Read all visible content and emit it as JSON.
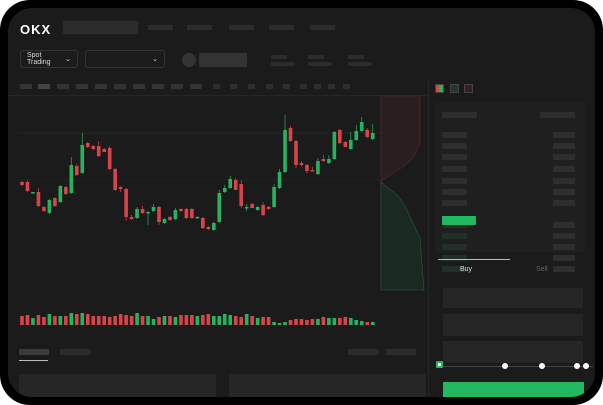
{
  "app": {
    "logo": "OKX"
  },
  "header": {
    "mode_select": "Spot Trading",
    "pair_select": ""
  },
  "trade": {
    "tabs": [
      {
        "label": "Buy",
        "active": true
      },
      {
        "label": "Sell",
        "active": false
      }
    ],
    "slider_value_percent": 0
  },
  "colors": {
    "up": "#25b35f",
    "down": "#d9434a",
    "bg": "#1b1b1b",
    "accent": "#22b860"
  },
  "icons": [
    "chevron-down-icon",
    "orderbook-both-icon",
    "orderbook-bids-icon",
    "orderbook-asks-icon"
  ],
  "chart_data": {
    "type": "candlestick",
    "ohlc": [
      [
        68,
        69,
        64,
        65
      ],
      [
        68,
        70,
        58,
        59
      ],
      [
        57,
        58,
        56,
        58
      ],
      [
        58,
        62,
        43,
        44
      ],
      [
        43,
        44,
        38,
        39
      ],
      [
        37,
        51,
        36,
        50
      ],
      [
        52,
        53,
        43,
        44
      ],
      [
        48,
        65,
        47,
        64
      ],
      [
        63,
        64,
        55,
        56
      ],
      [
        57,
        93,
        56,
        85
      ],
      [
        84,
        86,
        74,
        75
      ],
      [
        77,
        117,
        76,
        105
      ],
      [
        107,
        108,
        102,
        103
      ],
      [
        104,
        105,
        100,
        101
      ],
      [
        104,
        109,
        93,
        94
      ],
      [
        101,
        102,
        98,
        98
      ],
      [
        102,
        104,
        80,
        81
      ],
      [
        81,
        82,
        59,
        60
      ],
      [
        63,
        64,
        58,
        61
      ],
      [
        61,
        62,
        29,
        33
      ],
      [
        33,
        35,
        30,
        31
      ],
      [
        32,
        43,
        31,
        41
      ],
      [
        41,
        44,
        36,
        37
      ],
      [
        37,
        39,
        25,
        38
      ],
      [
        39,
        46,
        38,
        43
      ],
      [
        43,
        44,
        25,
        28
      ],
      [
        27,
        32,
        26,
        31
      ],
      [
        33,
        34,
        29,
        30
      ],
      [
        31,
        42,
        30,
        40
      ],
      [
        41,
        42,
        38,
        39
      ],
      [
        41,
        42,
        31,
        32
      ],
      [
        41,
        42,
        31,
        32
      ],
      [
        33,
        34,
        32,
        33
      ],
      [
        32,
        33,
        21,
        22
      ],
      [
        23,
        24,
        20,
        21
      ],
      [
        20,
        28,
        19,
        27
      ],
      [
        28,
        60,
        27,
        57
      ],
      [
        58,
        65,
        57,
        62
      ],
      [
        62,
        74,
        61,
        71
      ],
      [
        70,
        72,
        60,
        60
      ],
      [
        66,
        70,
        42,
        44
      ],
      [
        43,
        46,
        39,
        43
      ],
      [
        46,
        47,
        42,
        42
      ],
      [
        40,
        44,
        39,
        43
      ],
      [
        45,
        48,
        34,
        35
      ],
      [
        43,
        44,
        40,
        41
      ],
      [
        43,
        66,
        42,
        63
      ],
      [
        62,
        81,
        61,
        78
      ],
      [
        78,
        135,
        77,
        120
      ],
      [
        122,
        124,
        108,
        109
      ],
      [
        109,
        110,
        82,
        85
      ],
      [
        87,
        89,
        84,
        85
      ],
      [
        85,
        86,
        77,
        79
      ],
      [
        80,
        83,
        79,
        79
      ],
      [
        76,
        92,
        75,
        89
      ],
      [
        91,
        95,
        88,
        89
      ],
      [
        87,
        95,
        86,
        91
      ],
      [
        91,
        119,
        90,
        118
      ],
      [
        120,
        121,
        106,
        107
      ],
      [
        108,
        109,
        103,
        103
      ],
      [
        101,
        118,
        100,
        110
      ],
      [
        110,
        125,
        109,
        119
      ],
      [
        119,
        133,
        118,
        128
      ],
      [
        120,
        122,
        112,
        113
      ],
      [
        111,
        126,
        110,
        117
      ]
    ],
    "volume": [
      9,
      10,
      7,
      10,
      8,
      11,
      9,
      9,
      9,
      12,
      11,
      12,
      11,
      9,
      9,
      9,
      8,
      9,
      11,
      10,
      9,
      12,
      9,
      9,
      6,
      8,
      9,
      9,
      8,
      10,
      10,
      10,
      9,
      10,
      11,
      9,
      9,
      11,
      10,
      9,
      8,
      11,
      9,
      7,
      8,
      8,
      3,
      2,
      3,
      5,
      6,
      6,
      5,
      6,
      6,
      8,
      7,
      7,
      7,
      8,
      7,
      5,
      4,
      3,
      3
    ]
  }
}
